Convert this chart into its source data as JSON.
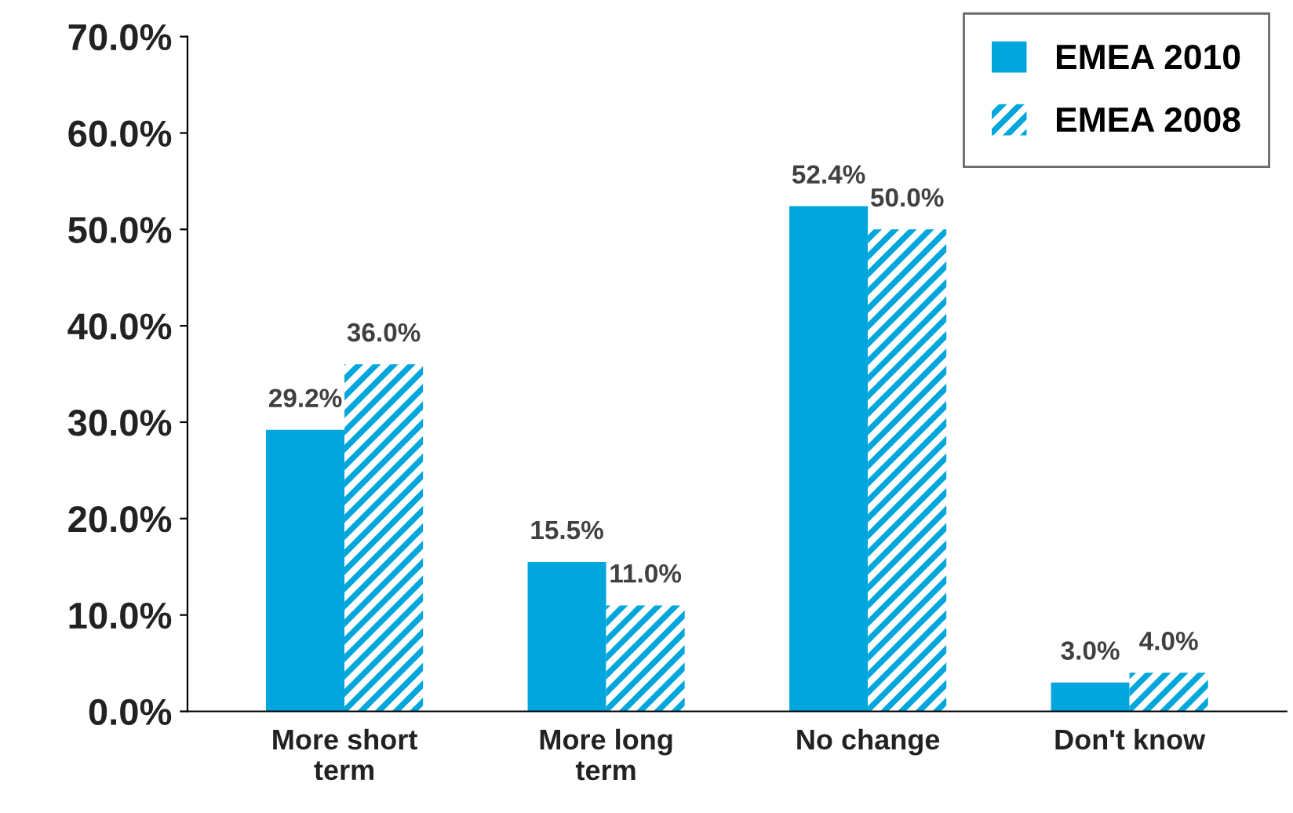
{
  "chart_data": {
    "type": "bar",
    "categories": [
      "More short\nterm",
      "More long\nterm",
      "No change",
      "Don't know"
    ],
    "series": [
      {
        "name": "EMEA 2010",
        "color": "#00a6dc",
        "values": [
          29.2,
          15.5,
          52.4,
          3.0
        ],
        "value_labels": [
          "29.2%",
          "15.5%",
          "52.4%",
          "3.0%"
        ]
      },
      {
        "name": "EMEA 2008",
        "color": "#00a6dc",
        "values": [
          36.0,
          11.0,
          50.0,
          4.0
        ],
        "value_labels": [
          "36.0%",
          "11.0%",
          "50.0%",
          "4.0%"
        ]
      }
    ],
    "ylim": [
      0,
      70
    ],
    "yticks": [
      {
        "value": 0,
        "label": "0.0%"
      },
      {
        "value": 10,
        "label": "10.0%"
      },
      {
        "value": 20,
        "label": "20.0%"
      },
      {
        "value": 30,
        "label": "30.0%"
      },
      {
        "value": 40,
        "label": "40.0%"
      },
      {
        "value": 50,
        "label": "50.0%"
      },
      {
        "value": 60,
        "label": "60.0%"
      },
      {
        "value": 70,
        "label": "70.0%"
      }
    ],
    "grid": false,
    "legend": "top right"
  }
}
